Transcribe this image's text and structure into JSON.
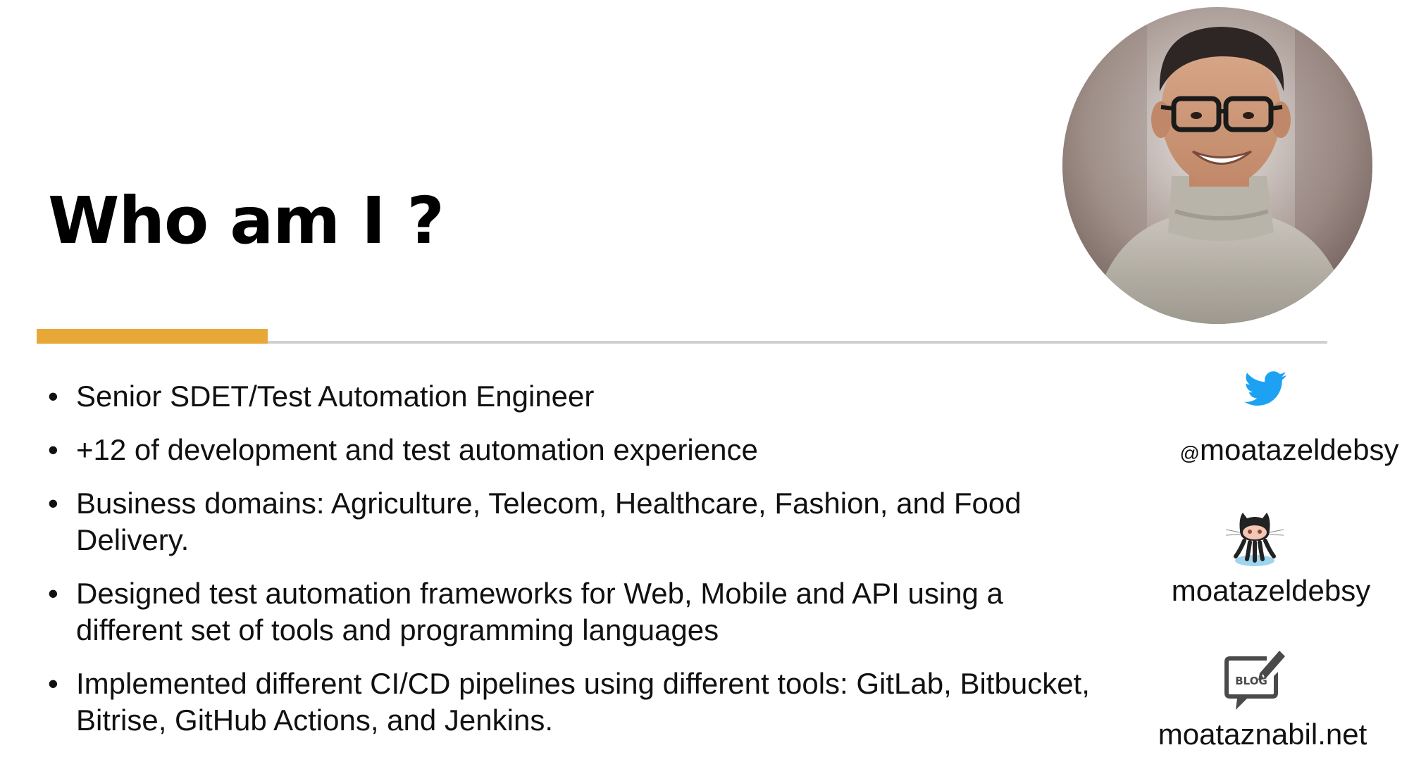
{
  "slide": {
    "title": "Who am I ?"
  },
  "bullets": [
    "Senior SDET/Test Automation Engineer",
    "+12 of development and test automation experience",
    "Business domains: Agriculture, Telecom, Healthcare, Fashion, and Food Delivery.",
    "Designed test automation frameworks for Web, Mobile and API using a different set of tools and programming languages",
    "Implemented different CI/CD pipelines using different tools: GitLab, Bitbucket, Bitrise, GitHub Actions, and Jenkins."
  ],
  "bullet_symbol": "•",
  "social": {
    "twitter": {
      "icon": "twitter-bird-icon",
      "at": "@",
      "handle": "moatazeldebsy"
    },
    "github": {
      "icon": "github-octocat-icon",
      "handle": "moatazeldebsy"
    },
    "blog": {
      "icon": "blog-speech-bubble-icon",
      "icon_text": "BLOG",
      "handle": "moataznabil.net"
    }
  },
  "colors": {
    "accent": "#e8a838",
    "rule": "#d0d0d0",
    "twitter": "#1da1f2",
    "text": "#111111"
  },
  "photo": {
    "icon": "profile-photo"
  }
}
